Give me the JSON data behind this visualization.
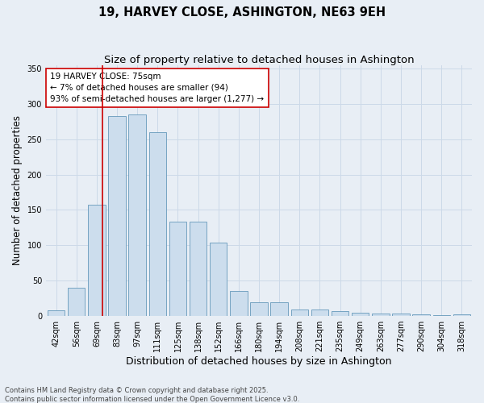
{
  "title1": "19, HARVEY CLOSE, ASHINGTON, NE63 9EH",
  "title2": "Size of property relative to detached houses in Ashington",
  "xlabel": "Distribution of detached houses by size in Ashington",
  "ylabel": "Number of detached properties",
  "categories": [
    "42sqm",
    "56sqm",
    "69sqm",
    "83sqm",
    "97sqm",
    "111sqm",
    "125sqm",
    "138sqm",
    "152sqm",
    "166sqm",
    "180sqm",
    "194sqm",
    "208sqm",
    "221sqm",
    "235sqm",
    "249sqm",
    "263sqm",
    "277sqm",
    "290sqm",
    "304sqm",
    "318sqm"
  ],
  "values": [
    8,
    40,
    157,
    283,
    285,
    260,
    133,
    133,
    104,
    35,
    20,
    20,
    9,
    9,
    7,
    5,
    4,
    3,
    2,
    1,
    2
  ],
  "bar_color": "#ccdded",
  "bar_edge_color": "#6699bb",
  "grid_color": "#ccd9e8",
  "background_color": "#e8eef5",
  "annotation_line1": "19 HARVEY CLOSE: 75sqm",
  "annotation_line2": "← 7% of detached houses are smaller (94)",
  "annotation_line3": "93% of semi-detached houses are larger (1,277) →",
  "annotation_box_facecolor": "#ffffff",
  "annotation_box_edgecolor": "#cc0000",
  "vline_x": 2.3,
  "vline_color": "#cc0000",
  "ylim": [
    0,
    355
  ],
  "yticks": [
    0,
    50,
    100,
    150,
    200,
    250,
    300,
    350
  ],
  "footer1": "Contains HM Land Registry data © Crown copyright and database right 2025.",
  "footer2": "Contains public sector information licensed under the Open Government Licence v3.0.",
  "title_fontsize": 10.5,
  "subtitle_fontsize": 9.5,
  "ylabel_fontsize": 8.5,
  "xlabel_fontsize": 9,
  "tick_fontsize": 7,
  "annotation_fontsize": 7.5,
  "footer_fontsize": 6
}
